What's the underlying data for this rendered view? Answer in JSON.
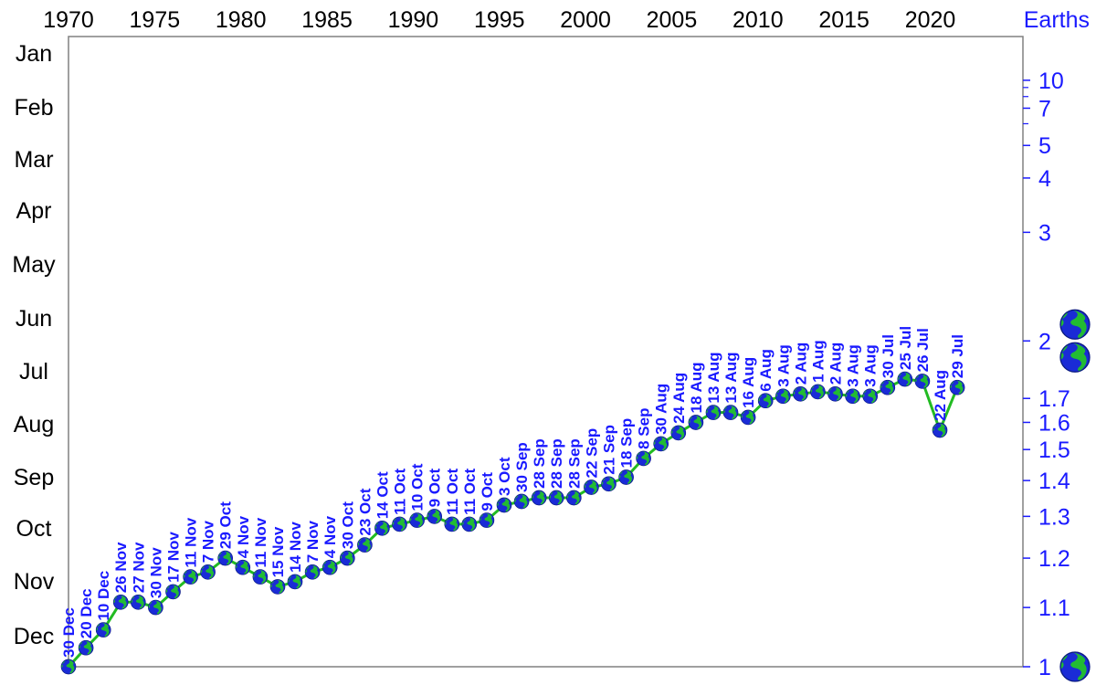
{
  "chart_data": {
    "type": "line",
    "title": "",
    "ylabel_right": "Earths",
    "x_ticks": [
      "1970",
      "1975",
      "1980",
      "1985",
      "1990",
      "1995",
      "2000",
      "2005",
      "2010",
      "2015",
      "2020"
    ],
    "x_tick_values": [
      1970,
      1975,
      1980,
      1985,
      1990,
      1995,
      2000,
      2005,
      2010,
      2015,
      2020
    ],
    "xlim": [
      1970,
      2023
    ],
    "left_axis_ticks": [
      "Jan",
      "Feb",
      "Mar",
      "Apr",
      "May",
      "Jun",
      "Jul",
      "Aug",
      "Sep",
      "Oct",
      "Nov",
      "Dec"
    ],
    "right_axis_ticks": [
      {
        "label": "1",
        "value": 1
      },
      {
        "label": "1.1",
        "value": 1.1
      },
      {
        "label": "1.2",
        "value": 1.2
      },
      {
        "label": "1.3",
        "value": 1.3
      },
      {
        "label": "1.4",
        "value": 1.4
      },
      {
        "label": "1.5",
        "value": 1.5
      },
      {
        "label": "1.6",
        "value": 1.6
      },
      {
        "label": "1.7",
        "value": 1.7
      },
      {
        "label": "2",
        "value": 2
      },
      {
        "label": "3",
        "value": 3
      },
      {
        "label": "4",
        "value": 4
      },
      {
        "label": "5",
        "value": 5
      },
      {
        "label": "7",
        "value": 7
      },
      {
        "label": "10",
        "value": 10
      }
    ],
    "right_axis_minor": [
      6,
      8,
      9
    ],
    "right_axis_scale": "reciprocal",
    "right_axis_earth_icons": [
      1,
      2
    ],
    "line_color": "#22bb22",
    "text_color": "#1a1aff",
    "points": [
      {
        "year": 1971,
        "label": "30 Dec",
        "earths": 1.0
      },
      {
        "year": 1972,
        "label": "20 Dec",
        "earths": 1.03
      },
      {
        "year": 1973,
        "label": "10 Dec",
        "earths": 1.06
      },
      {
        "year": 1974,
        "label": "26 Nov",
        "earths": 1.11
      },
      {
        "year": 1975,
        "label": "27 Nov",
        "earths": 1.11
      },
      {
        "year": 1976,
        "label": "30 Nov",
        "earths": 1.1
      },
      {
        "year": 1977,
        "label": "17 Nov",
        "earths": 1.13
      },
      {
        "year": 1978,
        "label": "11 Nov",
        "earths": 1.16
      },
      {
        "year": 1979,
        "label": "7 Nov",
        "earths": 1.17
      },
      {
        "year": 1980,
        "label": "29 Oct",
        "earths": 1.2
      },
      {
        "year": 1981,
        "label": "4 Nov",
        "earths": 1.18
      },
      {
        "year": 1982,
        "label": "11 Nov",
        "earths": 1.16
      },
      {
        "year": 1983,
        "label": "15 Nov",
        "earths": 1.14
      },
      {
        "year": 1984,
        "label": "14 Nov",
        "earths": 1.15
      },
      {
        "year": 1985,
        "label": "7 Nov",
        "earths": 1.17
      },
      {
        "year": 1986,
        "label": "4 Nov",
        "earths": 1.18
      },
      {
        "year": 1987,
        "label": "30 Oct",
        "earths": 1.2
      },
      {
        "year": 1988,
        "label": "23 Oct",
        "earths": 1.23
      },
      {
        "year": 1989,
        "label": "14 Oct",
        "earths": 1.27
      },
      {
        "year": 1990,
        "label": "11 Oct",
        "earths": 1.28
      },
      {
        "year": 1991,
        "label": "10 Oct",
        "earths": 1.29
      },
      {
        "year": 1992,
        "label": "9 Oct",
        "earths": 1.3
      },
      {
        "year": 1993,
        "label": "11 Oct",
        "earths": 1.28
      },
      {
        "year": 1994,
        "label": "11 Oct",
        "earths": 1.28
      },
      {
        "year": 1995,
        "label": "9 Oct",
        "earths": 1.29
      },
      {
        "year": 1996,
        "label": "3 Oct",
        "earths": 1.33
      },
      {
        "year": 1997,
        "label": "30 Sep",
        "earths": 1.34
      },
      {
        "year": 1998,
        "label": "28 Sep",
        "earths": 1.35
      },
      {
        "year": 1999,
        "label": "28 Sep",
        "earths": 1.35
      },
      {
        "year": 2000,
        "label": "28 Sep",
        "earths": 1.35
      },
      {
        "year": 2001,
        "label": "22 Sep",
        "earths": 1.38
      },
      {
        "year": 2002,
        "label": "21 Sep",
        "earths": 1.39
      },
      {
        "year": 2003,
        "label": "18 Sep",
        "earths": 1.41
      },
      {
        "year": 2004,
        "label": "8 Sep",
        "earths": 1.47
      },
      {
        "year": 2005,
        "label": "30 Aug",
        "earths": 1.52
      },
      {
        "year": 2006,
        "label": "24 Aug",
        "earths": 1.56
      },
      {
        "year": 2007,
        "label": "18 Aug",
        "earths": 1.6
      },
      {
        "year": 2008,
        "label": "13 Aug",
        "earths": 1.64
      },
      {
        "year": 2009,
        "label": "13 Aug",
        "earths": 1.64
      },
      {
        "year": 2010,
        "label": "16 Aug",
        "earths": 1.62
      },
      {
        "year": 2011,
        "label": "6 Aug",
        "earths": 1.69
      },
      {
        "year": 2012,
        "label": "3 Aug",
        "earths": 1.71
      },
      {
        "year": 2013,
        "label": "2 Aug",
        "earths": 1.72
      },
      {
        "year": 2014,
        "label": "1 Aug",
        "earths": 1.73
      },
      {
        "year": 2015,
        "label": "2 Aug",
        "earths": 1.72
      },
      {
        "year": 2016,
        "label": "3 Aug",
        "earths": 1.71
      },
      {
        "year": 2017,
        "label": "3 Aug",
        "earths": 1.71
      },
      {
        "year": 2018,
        "label": "30 Jul",
        "earths": 1.75
      },
      {
        "year": 2019,
        "label": "25 Jul",
        "earths": 1.79
      },
      {
        "year": 2020,
        "label": "26 Jul",
        "earths": 1.78
      },
      {
        "year": 2021,
        "label": "22 Aug",
        "earths": 1.57
      },
      {
        "year": 2022,
        "label": "29 Jul",
        "earths": 1.75
      }
    ]
  }
}
